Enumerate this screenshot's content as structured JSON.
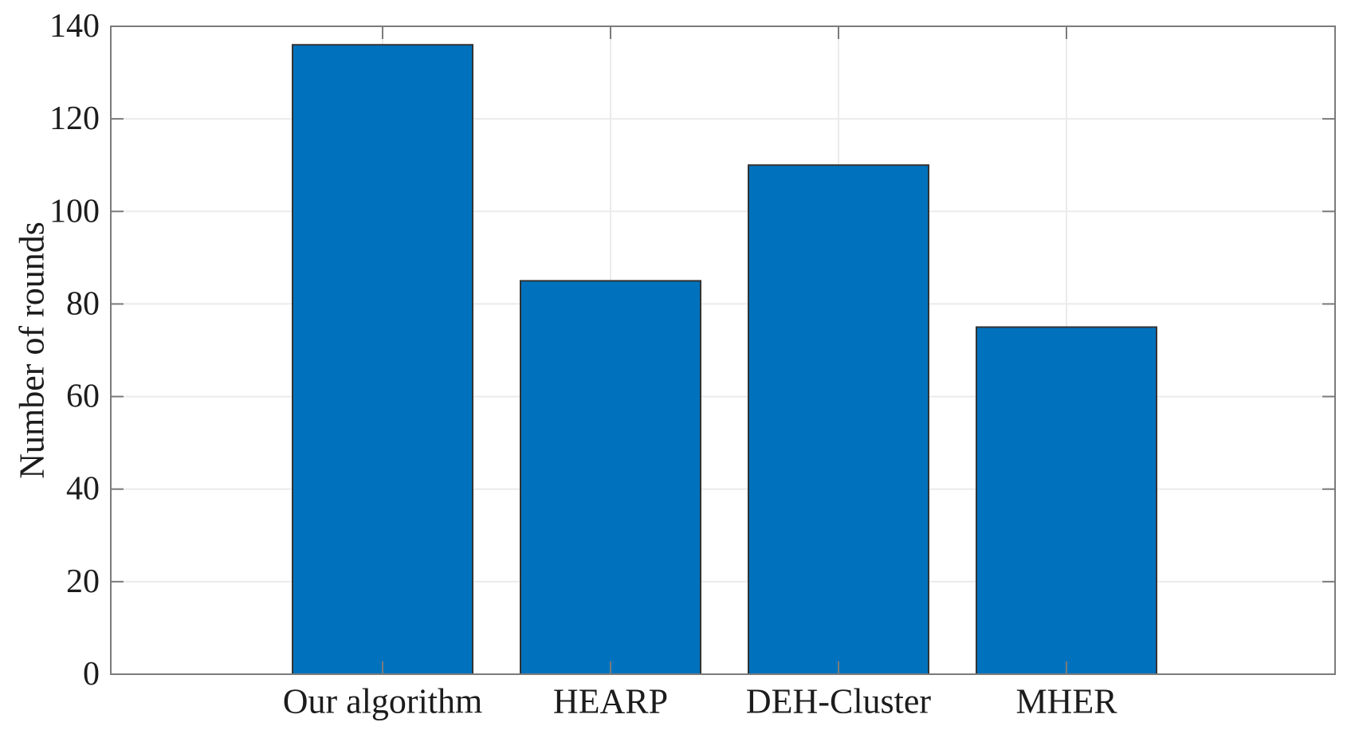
{
  "figure": {
    "background": "#ffffff"
  },
  "chart_data": {
    "type": "bar",
    "title": "",
    "categories": [
      "Our algorithm",
      "HEARP",
      "DEH-Cluster",
      "MHER"
    ],
    "values": [
      136,
      85,
      110,
      75
    ],
    "xlabel": "",
    "ylabel": "Number of rounds",
    "ylim": [
      0,
      140
    ],
    "yticks": [
      0,
      20,
      40,
      60,
      80,
      100,
      120,
      140
    ],
    "grid": "on",
    "legend": "none",
    "bar_color": "#0072BD",
    "bar_edge_color": "#333333",
    "axis_color": "#7b7b7b",
    "grid_color": "#ebebeb",
    "text_color": "#1c1c1c",
    "bar_width_fraction": 0.79
  }
}
